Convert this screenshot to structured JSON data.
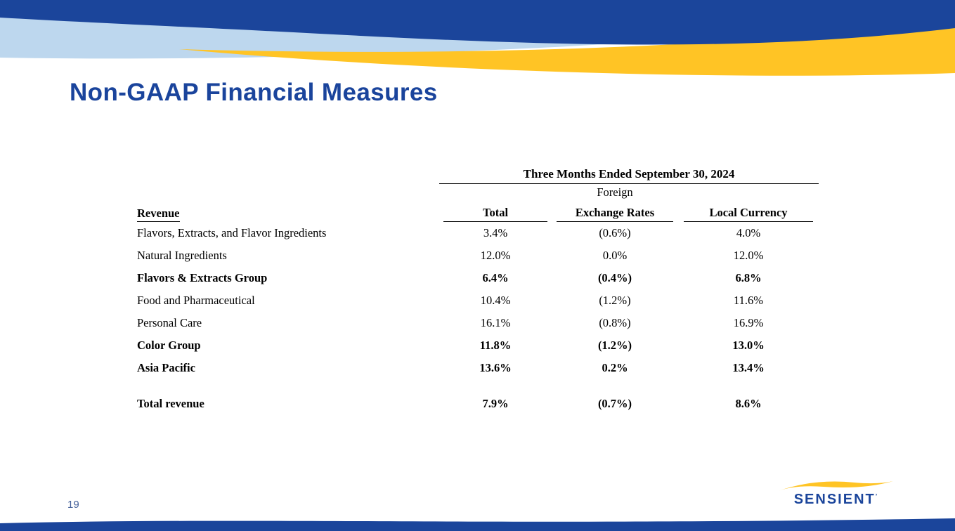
{
  "slide": {
    "title": "Non-GAAP Financial Measures",
    "page_number": "19",
    "logo_text": "SENSIENT",
    "logo_mark": "’"
  },
  "table": {
    "span_header": "Three Months Ended September 30, 2024",
    "col_foreign_line1": "Foreign",
    "columns": {
      "revenue": "Revenue",
      "total": "Total",
      "fx": "Exchange Rates",
      "local": "Local Currency"
    },
    "rows": [
      {
        "label": "Flavors, Extracts, and Flavor Ingredients",
        "total": "3.4%",
        "fx": "(0.6%)",
        "local": "4.0%",
        "bold": false
      },
      {
        "label": "Natural Ingredients",
        "total": "12.0%",
        "fx": "0.0%",
        "local": "12.0%",
        "bold": false
      },
      {
        "label": "Flavors & Extracts Group",
        "total": "6.4%",
        "fx": "(0.4%)",
        "local": "6.8%",
        "bold": true
      },
      {
        "label": "Food and Pharmaceutical",
        "total": "10.4%",
        "fx": "(1.2%)",
        "local": "11.6%",
        "bold": false
      },
      {
        "label": "Personal Care",
        "total": "16.1%",
        "fx": "(0.8%)",
        "local": "16.9%",
        "bold": false
      },
      {
        "label": "Color Group",
        "total": "11.8%",
        "fx": "(1.2%)",
        "local": "13.0%",
        "bold": true
      },
      {
        "label": "Asia Pacific",
        "total": "13.6%",
        "fx": "0.2%",
        "local": "13.4%",
        "bold": true
      },
      {
        "label": "Total revenue",
        "total": "7.9%",
        "fx": "(0.7%)",
        "local": "8.6%",
        "bold": true,
        "spacer": true
      }
    ]
  },
  "colors": {
    "brand_dark_blue": "#1B459B",
    "brand_yellow": "#FFC425",
    "brand_light_blue": "#BDD7EE",
    "title_blue": "#1A449C"
  }
}
